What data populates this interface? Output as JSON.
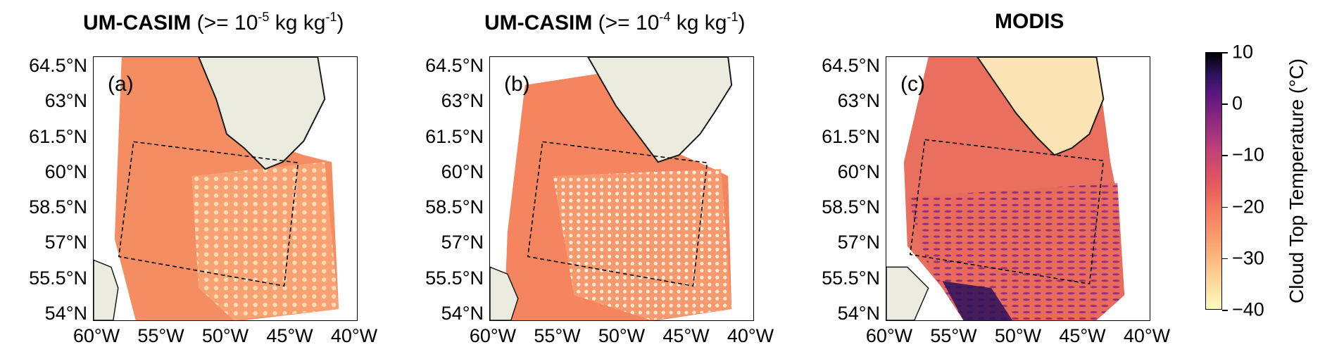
{
  "chart_data": [
    {
      "type": "heatmap",
      "panel": "(a)",
      "title_bold": "UM-CASIM",
      "title_rest_a": "(>= 10",
      "title_sup": "-5",
      "title_rest_b": " kg kg",
      "title_sup2": "-1",
      "title_close": ")",
      "lat_ticks": [
        "64.5°N",
        "63°N",
        "61.5°N",
        "60°N",
        "58.5°N",
        "57°N",
        "55.5°N",
        "54°N"
      ],
      "lon_ticks": [
        "60°W",
        "55°W",
        "50°W",
        "45°W",
        "40°W"
      ],
      "lat_range": [
        53.7,
        64.8
      ],
      "lon_range": [
        -61,
        -39
      ]
    },
    {
      "type": "heatmap",
      "panel": "(b)",
      "title_bold": "UM-CASIM",
      "title_rest_a": "(>= 10",
      "title_sup": "-4",
      "title_rest_b": " kg kg",
      "title_sup2": "-1",
      "title_close": ")",
      "lat_ticks": [
        "64.5°N",
        "63°N",
        "61.5°N",
        "60°N",
        "58.5°N",
        "57°N",
        "55.5°N",
        "54°N"
      ],
      "lon_ticks": [
        "60°W",
        "55°W",
        "50°W",
        "45°W",
        "40°W"
      ],
      "lat_range": [
        53.7,
        64.8
      ],
      "lon_range": [
        -61,
        -39
      ]
    },
    {
      "type": "heatmap",
      "panel": "(c)",
      "title_bold": "MODIS",
      "lat_ticks": [
        "64.5°N",
        "63°N",
        "61.5°N",
        "60°N",
        "58.5°N",
        "57°N",
        "55.5°N",
        "54°N"
      ],
      "lon_ticks": [
        "60°W",
        "55°W",
        "50°W",
        "45°W",
        "40°W"
      ],
      "lat_range": [
        53.7,
        64.8
      ],
      "lon_range": [
        -61,
        -39
      ]
    }
  ],
  "colorbar": {
    "label": "Cloud Top Temperature (°C)",
    "ticks": [
      "10",
      "0",
      "−10",
      "−20",
      "−30",
      "−40"
    ],
    "range": [
      -40,
      10
    ],
    "colormap": "magma"
  },
  "colors": {
    "land": "#ecebdf",
    "cloud_warm": "#f5845f",
    "cloud_cool": "#fdbb88",
    "modis_purple": "#8c2981",
    "modis_dark": "#2a115a"
  }
}
